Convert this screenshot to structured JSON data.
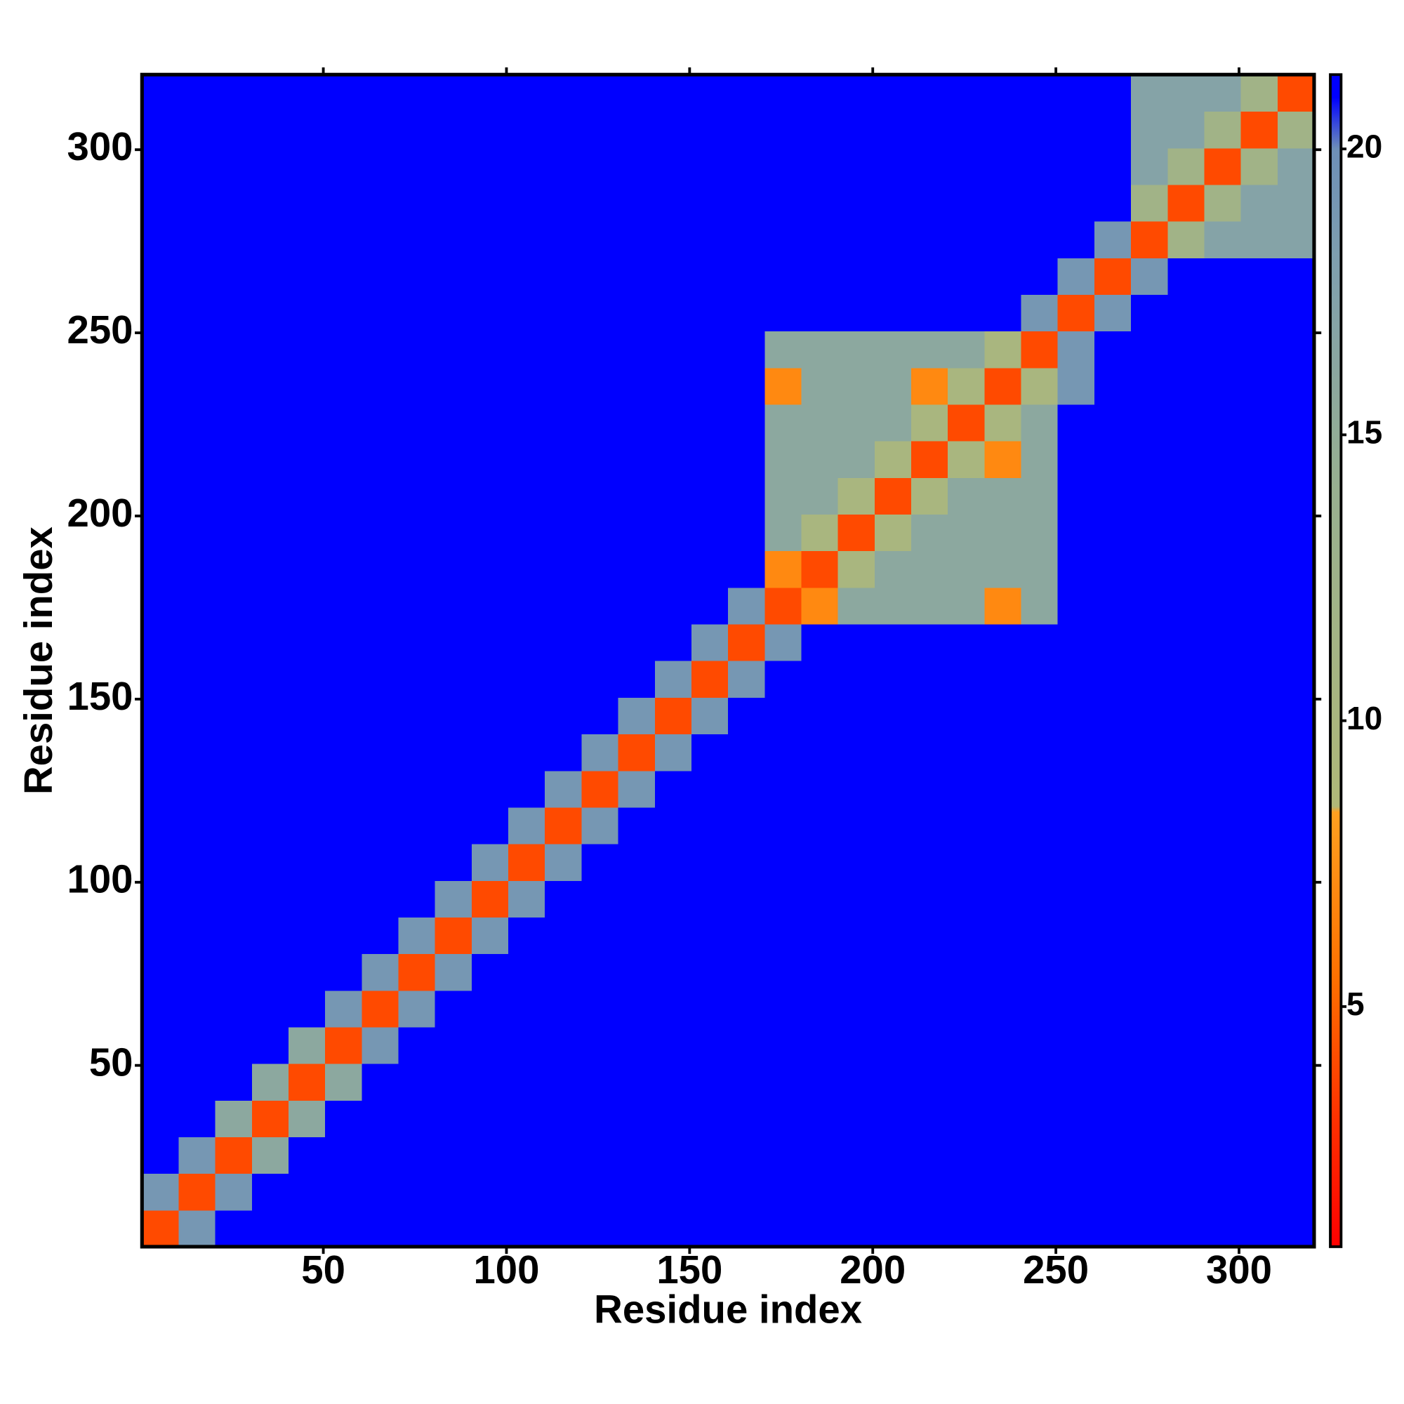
{
  "chart_data": {
    "type": "heatmap",
    "xlabel": "Residue index",
    "ylabel": "Residue index",
    "xlim": [
      0.5,
      320.5
    ],
    "ylim": [
      0.5,
      320.5
    ],
    "xticks": [
      50,
      100,
      150,
      200,
      250,
      300
    ],
    "yticks": [
      50,
      100,
      150,
      200,
      250,
      300
    ],
    "bins": [
      0.5,
      10.5,
      20.5,
      30.5,
      40.5,
      50.5,
      60.5,
      70.5,
      80.5,
      90.5,
      100.5,
      110.5,
      120.5,
      130.5,
      140.5,
      150.5,
      160.5,
      170.5,
      180.5,
      190.5,
      200.5,
      210.5,
      220.5,
      230.5,
      240.5,
      250.5,
      260.5,
      270.5,
      280.5,
      290.5,
      300.5,
      310.5,
      320.5
    ],
    "z": [
      [
        4,
        19,
        21,
        21,
        21,
        21,
        21,
        21,
        21,
        21,
        21,
        21,
        21,
        21,
        21,
        21,
        21,
        21,
        21,
        21,
        21,
        21,
        21,
        21,
        21,
        21,
        21,
        21,
        21,
        21,
        21,
        21
      ],
      [
        19,
        4,
        19,
        21,
        21,
        21,
        21,
        21,
        21,
        21,
        21,
        21,
        21,
        21,
        21,
        21,
        21,
        21,
        21,
        21,
        21,
        21,
        21,
        21,
        21,
        21,
        21,
        21,
        21,
        21,
        21,
        21
      ],
      [
        21,
        19,
        4,
        16,
        21,
        21,
        21,
        21,
        21,
        21,
        21,
        21,
        21,
        21,
        21,
        21,
        21,
        21,
        21,
        21,
        21,
        21,
        21,
        21,
        21,
        21,
        21,
        21,
        21,
        21,
        21,
        21
      ],
      [
        21,
        21,
        16,
        4,
        16,
        21,
        21,
        21,
        21,
        21,
        21,
        21,
        21,
        21,
        21,
        21,
        21,
        21,
        21,
        21,
        21,
        21,
        21,
        21,
        21,
        21,
        21,
        21,
        21,
        21,
        21,
        21
      ],
      [
        21,
        21,
        21,
        16,
        4,
        16,
        21,
        21,
        21,
        21,
        21,
        21,
        21,
        21,
        21,
        21,
        21,
        21,
        21,
        21,
        21,
        21,
        21,
        21,
        21,
        21,
        21,
        21,
        21,
        21,
        21,
        21
      ],
      [
        21,
        21,
        21,
        21,
        16,
        4,
        19,
        21,
        21,
        21,
        21,
        21,
        21,
        21,
        21,
        21,
        21,
        21,
        21,
        21,
        21,
        21,
        21,
        21,
        21,
        21,
        21,
        21,
        21,
        21,
        21,
        21
      ],
      [
        21,
        21,
        21,
        21,
        21,
        19,
        4,
        19,
        21,
        21,
        21,
        21,
        21,
        21,
        21,
        21,
        21,
        21,
        21,
        21,
        21,
        21,
        21,
        21,
        21,
        21,
        21,
        21,
        21,
        21,
        21,
        21
      ],
      [
        21,
        21,
        21,
        21,
        21,
        21,
        19,
        4,
        19,
        21,
        21,
        21,
        21,
        21,
        21,
        21,
        21,
        21,
        21,
        21,
        21,
        21,
        21,
        21,
        21,
        21,
        21,
        21,
        21,
        21,
        21,
        21
      ],
      [
        21,
        21,
        21,
        21,
        21,
        21,
        21,
        19,
        4,
        19,
        21,
        21,
        21,
        21,
        21,
        21,
        21,
        21,
        21,
        21,
        21,
        21,
        21,
        21,
        21,
        21,
        21,
        21,
        21,
        21,
        21,
        21
      ],
      [
        21,
        21,
        21,
        21,
        21,
        21,
        21,
        21,
        19,
        4,
        19,
        21,
        21,
        21,
        21,
        21,
        21,
        21,
        21,
        21,
        21,
        21,
        21,
        21,
        21,
        21,
        21,
        21,
        21,
        21,
        21,
        21
      ],
      [
        21,
        21,
        21,
        21,
        21,
        21,
        21,
        21,
        21,
        19,
        4,
        19,
        21,
        21,
        21,
        21,
        21,
        21,
        21,
        21,
        21,
        21,
        21,
        21,
        21,
        21,
        21,
        21,
        21,
        21,
        21,
        21
      ],
      [
        21,
        21,
        21,
        21,
        21,
        21,
        21,
        21,
        21,
        21,
        19,
        4,
        19,
        21,
        21,
        21,
        21,
        21,
        21,
        21,
        21,
        21,
        21,
        21,
        21,
        21,
        21,
        21,
        21,
        21,
        21,
        21
      ],
      [
        21,
        21,
        21,
        21,
        21,
        21,
        21,
        21,
        21,
        21,
        21,
        19,
        4,
        19,
        21,
        21,
        21,
        21,
        21,
        21,
        21,
        21,
        21,
        21,
        21,
        21,
        21,
        21,
        21,
        21,
        21,
        21
      ],
      [
        21,
        21,
        21,
        21,
        21,
        21,
        21,
        21,
        21,
        21,
        21,
        21,
        19,
        4,
        19,
        21,
        21,
        21,
        21,
        21,
        21,
        21,
        21,
        21,
        21,
        21,
        21,
        21,
        21,
        21,
        21,
        21
      ],
      [
        21,
        21,
        21,
        21,
        21,
        21,
        21,
        21,
        21,
        21,
        21,
        21,
        21,
        19,
        4,
        19,
        21,
        21,
        21,
        21,
        21,
        21,
        21,
        21,
        21,
        21,
        21,
        21,
        21,
        21,
        21,
        21
      ],
      [
        21,
        21,
        21,
        21,
        21,
        21,
        21,
        21,
        21,
        21,
        21,
        21,
        21,
        21,
        19,
        4,
        19,
        21,
        21,
        21,
        21,
        21,
        21,
        21,
        21,
        21,
        21,
        21,
        21,
        21,
        21,
        21
      ],
      [
        21,
        21,
        21,
        21,
        21,
        21,
        21,
        21,
        21,
        21,
        21,
        21,
        21,
        21,
        21,
        19,
        4,
        19,
        21,
        21,
        21,
        21,
        21,
        21,
        21,
        21,
        21,
        21,
        21,
        21,
        21,
        21
      ],
      [
        21,
        21,
        21,
        21,
        21,
        21,
        21,
        21,
        21,
        21,
        21,
        21,
        21,
        21,
        21,
        21,
        19,
        4,
        7,
        16,
        16,
        16,
        16,
        7,
        16,
        21,
        21,
        21,
        21,
        21,
        21,
        21
      ],
      [
        21,
        21,
        21,
        21,
        21,
        21,
        21,
        21,
        21,
        21,
        21,
        21,
        21,
        21,
        21,
        21,
        21,
        7,
        4,
        10,
        16,
        16,
        16,
        16,
        16,
        21,
        21,
        21,
        21,
        21,
        21,
        21
      ],
      [
        21,
        21,
        21,
        21,
        21,
        21,
        21,
        21,
        21,
        21,
        21,
        21,
        21,
        21,
        21,
        21,
        21,
        16,
        10,
        4,
        10,
        16,
        16,
        16,
        16,
        21,
        21,
        21,
        21,
        21,
        21,
        21
      ],
      [
        21,
        21,
        21,
        21,
        21,
        21,
        21,
        21,
        21,
        21,
        21,
        21,
        21,
        21,
        21,
        21,
        21,
        16,
        16,
        10,
        4,
        10,
        16,
        16,
        16,
        21,
        21,
        21,
        21,
        21,
        21,
        21
      ],
      [
        21,
        21,
        21,
        21,
        21,
        21,
        21,
        21,
        21,
        21,
        21,
        21,
        21,
        21,
        21,
        21,
        21,
        16,
        16,
        16,
        10,
        4,
        10,
        7,
        16,
        21,
        21,
        21,
        21,
        21,
        21,
        21
      ],
      [
        21,
        21,
        21,
        21,
        21,
        21,
        21,
        21,
        21,
        21,
        21,
        21,
        21,
        21,
        21,
        21,
        21,
        16,
        16,
        16,
        16,
        10,
        4,
        10,
        16,
        21,
        21,
        21,
        21,
        21,
        21,
        21
      ],
      [
        21,
        21,
        21,
        21,
        21,
        21,
        21,
        21,
        21,
        21,
        21,
        21,
        21,
        21,
        21,
        21,
        21,
        7,
        16,
        16,
        16,
        7,
        10,
        4,
        10,
        19,
        21,
        21,
        21,
        21,
        21,
        21
      ],
      [
        21,
        21,
        21,
        21,
        21,
        21,
        21,
        21,
        21,
        21,
        21,
        21,
        21,
        21,
        21,
        21,
        21,
        16,
        16,
        16,
        16,
        16,
        16,
        10,
        4,
        19,
        21,
        21,
        21,
        21,
        21,
        21
      ],
      [
        21,
        21,
        21,
        21,
        21,
        21,
        21,
        21,
        21,
        21,
        21,
        21,
        21,
        21,
        21,
        21,
        21,
        21,
        21,
        21,
        21,
        21,
        21,
        21,
        19,
        4,
        19,
        21,
        21,
        21,
        21,
        21
      ],
      [
        21,
        21,
        21,
        21,
        21,
        21,
        21,
        21,
        21,
        21,
        21,
        21,
        21,
        21,
        21,
        21,
        21,
        21,
        21,
        21,
        21,
        21,
        21,
        21,
        21,
        19,
        4,
        19,
        21,
        21,
        21,
        21
      ],
      [
        21,
        21,
        21,
        21,
        21,
        21,
        21,
        21,
        21,
        21,
        21,
        21,
        21,
        21,
        21,
        21,
        21,
        21,
        21,
        21,
        21,
        21,
        21,
        21,
        21,
        21,
        19,
        4,
        12,
        17,
        17,
        17
      ],
      [
        21,
        21,
        21,
        21,
        21,
        21,
        21,
        21,
        21,
        21,
        21,
        21,
        21,
        21,
        21,
        21,
        21,
        21,
        21,
        21,
        21,
        21,
        21,
        21,
        21,
        21,
        21,
        12,
        4,
        12,
        17,
        17
      ],
      [
        21,
        21,
        21,
        21,
        21,
        21,
        21,
        21,
        21,
        21,
        21,
        21,
        21,
        21,
        21,
        21,
        21,
        21,
        21,
        21,
        21,
        21,
        21,
        21,
        21,
        21,
        21,
        17,
        12,
        4,
        12,
        17
      ],
      [
        21,
        21,
        21,
        21,
        21,
        21,
        21,
        21,
        21,
        21,
        21,
        21,
        21,
        21,
        21,
        21,
        21,
        21,
        21,
        21,
        21,
        21,
        21,
        21,
        21,
        21,
        21,
        17,
        17,
        12,
        4,
        12
      ],
      [
        21,
        21,
        21,
        21,
        21,
        21,
        21,
        21,
        21,
        21,
        21,
        21,
        21,
        21,
        21,
        21,
        21,
        21,
        21,
        21,
        21,
        21,
        21,
        21,
        21,
        21,
        21,
        17,
        17,
        17,
        12,
        4
      ]
    ],
    "zlim": [
      0.8,
      21.3
    ],
    "zticks": [
      5,
      10,
      15,
      20
    ],
    "colorscale": [
      [
        0.8,
        "#ff0000"
      ],
      [
        3,
        "#ff3000"
      ],
      [
        5.5,
        "#ff7000"
      ],
      [
        8.4,
        "#ffa020"
      ],
      [
        8.5,
        "#b0b878"
      ],
      [
        14,
        "#98b090"
      ],
      [
        18,
        "#7f9fae"
      ],
      [
        20,
        "#6d8fb8"
      ],
      [
        20.9,
        "#0000ff"
      ]
    ]
  }
}
